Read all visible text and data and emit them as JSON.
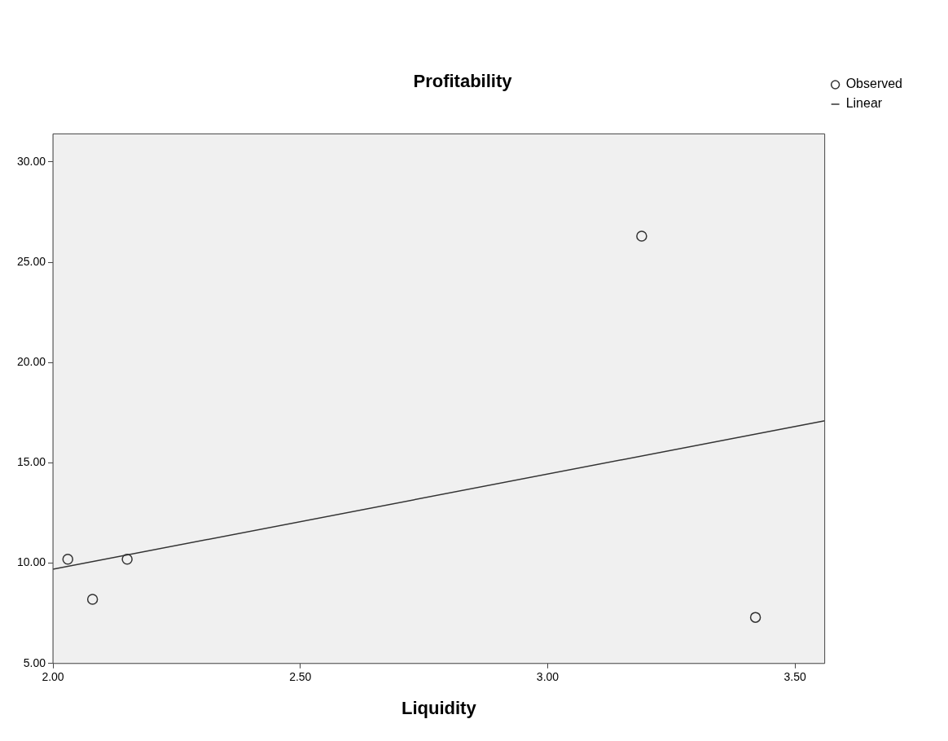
{
  "chart_data": {
    "type": "scatter",
    "title": "Profitability",
    "xlabel": "Liquidity",
    "xlim": [
      2.0,
      3.56
    ],
    "xticks": [
      {
        "value": 2,
        "label": "2.00"
      },
      {
        "value": 2.5,
        "label": "2.50"
      },
      {
        "value": 3,
        "label": "3.00"
      },
      {
        "value": 3.5,
        "label": "3.50"
      }
    ],
    "ylim": [
      5,
      31.4
    ],
    "yticks": [
      {
        "value": 5,
        "label": "5.00"
      },
      {
        "value": 10,
        "label": "10.00"
      },
      {
        "value": 15,
        "label": "15.00"
      },
      {
        "value": 20,
        "label": "20.00"
      },
      {
        "value": 25,
        "label": "25.00"
      },
      {
        "value": 30,
        "label": "30.00"
      }
    ],
    "grid": false,
    "legend": "top right",
    "series": [
      {
        "name": "Observed",
        "type": "scatter",
        "marker": "circle",
        "color": "#333333",
        "x": [
          2.03,
          2.08,
          2.15,
          3.19,
          3.42
        ],
        "values": [
          10.2,
          8.2,
          10.2,
          26.3,
          7.3
        ]
      },
      {
        "name": "Linear",
        "type": "line",
        "marker": "none",
        "color": "#333333",
        "x": [
          2.0,
          3.56
        ],
        "values": [
          9.7,
          17.1
        ]
      }
    ]
  }
}
